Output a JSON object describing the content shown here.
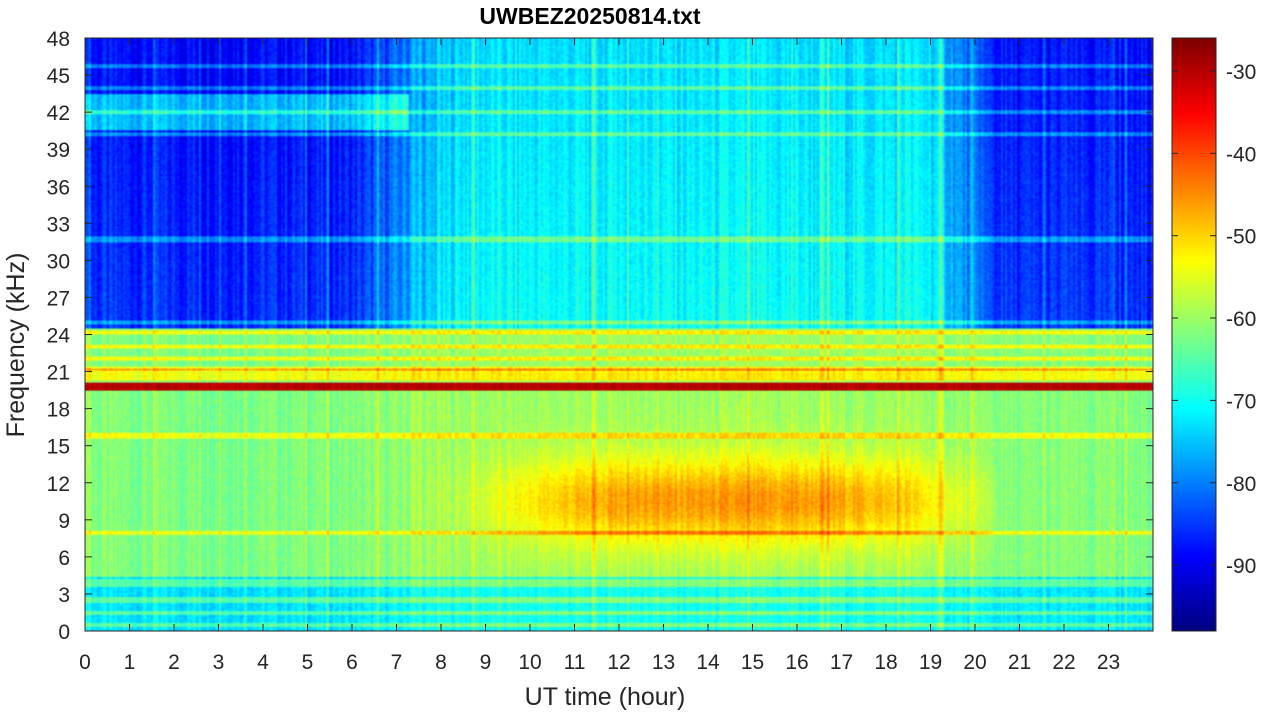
{
  "chart_data": {
    "type": "heatmap",
    "title": "UWBEZ20250814.txt",
    "xlabel": "UT time (hour)",
    "ylabel": "Frequency (kHz)",
    "xlim": [
      0,
      24
    ],
    "ylim": [
      0,
      48
    ],
    "clim": [
      -98,
      -26
    ],
    "colormap": "jet",
    "x_ticks": [
      "0",
      "1",
      "2",
      "3",
      "4",
      "5",
      "6",
      "7",
      "8",
      "9",
      "10",
      "11",
      "12",
      "13",
      "14",
      "15",
      "16",
      "17",
      "18",
      "19",
      "20",
      "21",
      "22",
      "23"
    ],
    "y_ticks": [
      "0",
      "3",
      "6",
      "9",
      "12",
      "15",
      "18",
      "21",
      "24",
      "27",
      "30",
      "33",
      "36",
      "39",
      "42",
      "45",
      "48"
    ],
    "colorbar_ticks": [
      "-30",
      "-40",
      "-50",
      "-60",
      "-70",
      "-80",
      "-90"
    ],
    "features": {
      "strong_line_khz": 19.8,
      "strong_line_level": -30,
      "hump_center_hour": 14.5,
      "hump_center_khz": 10.5,
      "hump_peak_level": -46,
      "night_upper_band_level": -87,
      "day_upper_band_level": -72,
      "low_band_level": -66,
      "horizontal_lines_khz": [
        0.5,
        1.5,
        2.5,
        3.7,
        4.0,
        8.0,
        15.8,
        20.5,
        21.0,
        21.3,
        22.0,
        23.0,
        24.2,
        25.0,
        31.7,
        40.2,
        42.0,
        44.0,
        45.7
      ]
    }
  }
}
